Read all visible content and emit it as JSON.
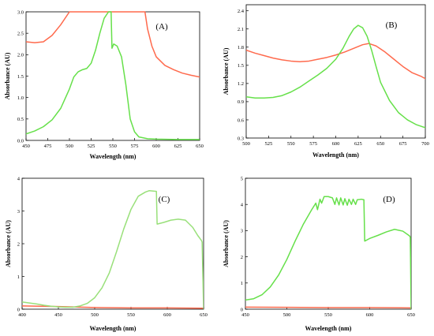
{
  "chart_data": [
    {
      "type": "line",
      "panel": "(A)",
      "xlabel": "Wavelength (nm)",
      "ylabel": "Absorbance (AU)",
      "xlim": [
        450,
        650
      ],
      "ylim": [
        0,
        3.0
      ],
      "xticks": [
        450,
        475,
        500,
        525,
        550,
        575,
        600,
        625,
        650
      ],
      "yticks": [
        0.0,
        0.5,
        1.0,
        1.5,
        2.0,
        2.5,
        3.0
      ],
      "tick_decimals": 1,
      "series": [
        {
          "color": "#ff6a4d",
          "points": [
            [
              450,
              2.3
            ],
            [
              460,
              2.28
            ],
            [
              470,
              2.3
            ],
            [
              480,
              2.45
            ],
            [
              490,
              2.7
            ],
            [
              500,
              3.0
            ],
            [
              510,
              3.0
            ],
            [
              520,
              3.0
            ],
            [
              530,
              3.0
            ],
            [
              540,
              3.0
            ],
            [
              550,
              3.0
            ],
            [
              560,
              3.0
            ],
            [
              570,
              3.0
            ],
            [
              580,
              3.0
            ],
            [
              587,
              3.0
            ],
            [
              590,
              2.6
            ],
            [
              595,
              2.2
            ],
            [
              600,
              1.95
            ],
            [
              610,
              1.75
            ],
            [
              620,
              1.65
            ],
            [
              630,
              1.57
            ],
            [
              640,
              1.52
            ],
            [
              650,
              1.48
            ]
          ]
        },
        {
          "color": "#66e04a",
          "points": [
            [
              450,
              0.15
            ],
            [
              460,
              0.22
            ],
            [
              470,
              0.32
            ],
            [
              480,
              0.48
            ],
            [
              490,
              0.75
            ],
            [
              500,
              1.2
            ],
            [
              505,
              1.48
            ],
            [
              510,
              1.6
            ],
            [
              515,
              1.65
            ],
            [
              520,
              1.68
            ],
            [
              525,
              1.8
            ],
            [
              530,
              2.1
            ],
            [
              535,
              2.5
            ],
            [
              540,
              2.85
            ],
            [
              545,
              3.0
            ],
            [
              548,
              3.0
            ],
            [
              549,
              2.15
            ],
            [
              551,
              2.25
            ],
            [
              555,
              2.2
            ],
            [
              560,
              1.95
            ],
            [
              565,
              1.3
            ],
            [
              570,
              0.5
            ],
            [
              575,
              0.2
            ],
            [
              580,
              0.08
            ],
            [
              590,
              0.04
            ],
            [
              600,
              0.03
            ],
            [
              625,
              0.02
            ],
            [
              650,
              0.02
            ]
          ]
        }
      ]
    },
    {
      "type": "line",
      "panel": "(B)",
      "xlabel": "Wavelength (nm)",
      "ylabel": "Absorbance (AU)",
      "xlim": [
        500,
        700
      ],
      "ylim": [
        0.3,
        2.5
      ],
      "xticks": [
        500,
        525,
        550,
        575,
        600,
        625,
        650,
        675,
        700
      ],
      "yticks": [
        0.3,
        0.6,
        0.9,
        1.2,
        1.5,
        1.8,
        2.1,
        2.4
      ],
      "tick_decimals": 1,
      "series": [
        {
          "color": "#ff6a4d",
          "points": [
            [
              500,
              1.75
            ],
            [
              510,
              1.7
            ],
            [
              520,
              1.66
            ],
            [
              530,
              1.62
            ],
            [
              540,
              1.59
            ],
            [
              550,
              1.57
            ],
            [
              560,
              1.56
            ],
            [
              570,
              1.57
            ],
            [
              580,
              1.6
            ],
            [
              590,
              1.63
            ],
            [
              600,
              1.67
            ],
            [
              610,
              1.72
            ],
            [
              620,
              1.78
            ],
            [
              630,
              1.84
            ],
            [
              637,
              1.86
            ],
            [
              645,
              1.82
            ],
            [
              655,
              1.72
            ],
            [
              665,
              1.6
            ],
            [
              675,
              1.48
            ],
            [
              685,
              1.38
            ],
            [
              695,
              1.32
            ],
            [
              700,
              1.28
            ]
          ]
        },
        {
          "color": "#66e04a",
          "points": [
            [
              500,
              0.98
            ],
            [
              510,
              0.96
            ],
            [
              520,
              0.96
            ],
            [
              530,
              0.97
            ],
            [
              540,
              1.0
            ],
            [
              550,
              1.06
            ],
            [
              560,
              1.14
            ],
            [
              570,
              1.24
            ],
            [
              580,
              1.34
            ],
            [
              590,
              1.45
            ],
            [
              600,
              1.6
            ],
            [
              608,
              1.78
            ],
            [
              615,
              1.98
            ],
            [
              620,
              2.1
            ],
            [
              625,
              2.16
            ],
            [
              630,
              2.12
            ],
            [
              635,
              1.98
            ],
            [
              640,
              1.75
            ],
            [
              645,
              1.48
            ],
            [
              650,
              1.22
            ],
            [
              660,
              0.92
            ],
            [
              670,
              0.72
            ],
            [
              680,
              0.6
            ],
            [
              690,
              0.52
            ],
            [
              700,
              0.47
            ]
          ]
        }
      ]
    },
    {
      "type": "line",
      "panel": "(C)",
      "xlabel": "Wavelength (nm)",
      "ylabel": "Absorbance (AU)",
      "xlim": [
        400,
        650
      ],
      "ylim": [
        0,
        4
      ],
      "xticks": [
        400,
        450,
        500,
        550,
        600,
        650
      ],
      "yticks": [
        0,
        1,
        2,
        3,
        4
      ],
      "tick_decimals": 0,
      "series": [
        {
          "color": "#ff6a4d",
          "points": [
            [
              400,
              0.1
            ],
            [
              450,
              0.08
            ],
            [
              500,
              0.05
            ],
            [
              550,
              0.04
            ],
            [
              600,
              0.04
            ],
            [
              650,
              0.03
            ]
          ]
        },
        {
          "color": "#99e07a",
          "points": [
            [
              400,
              0.22
            ],
            [
              410,
              0.19
            ],
            [
              420,
              0.16
            ],
            [
              430,
              0.12
            ],
            [
              440,
              0.09
            ],
            [
              450,
              0.07
            ],
            [
              460,
              0.06
            ],
            [
              470,
              0.06
            ],
            [
              480,
              0.1
            ],
            [
              490,
              0.18
            ],
            [
              500,
              0.35
            ],
            [
              510,
              0.65
            ],
            [
              520,
              1.1
            ],
            [
              530,
              1.75
            ],
            [
              540,
              2.45
            ],
            [
              550,
              3.05
            ],
            [
              560,
              3.45
            ],
            [
              570,
              3.58
            ],
            [
              575,
              3.62
            ],
            [
              585,
              3.6
            ],
            [
              586,
              2.6
            ],
            [
              595,
              2.65
            ],
            [
              605,
              2.72
            ],
            [
              615,
              2.75
            ],
            [
              625,
              2.72
            ],
            [
              635,
              2.5
            ],
            [
              642,
              2.25
            ],
            [
              647,
              2.1
            ],
            [
              648,
              2.05
            ],
            [
              650,
              0.02
            ]
          ]
        }
      ]
    },
    {
      "type": "line",
      "panel": "(D)",
      "xlabel": "Wavelength (nm)",
      "ylabel": "Absorbance (AU)",
      "xlim": [
        450,
        650
      ],
      "ylim": [
        0,
        5
      ],
      "xticks": [
        450,
        500,
        550,
        600,
        650
      ],
      "yticks": [
        0,
        1,
        2,
        3,
        4,
        5
      ],
      "tick_decimals": 0,
      "series": [
        {
          "color": "#ff6a4d",
          "points": [
            [
              450,
              0.08
            ],
            [
              500,
              0.07
            ],
            [
              550,
              0.06
            ],
            [
              600,
              0.06
            ],
            [
              650,
              0.05
            ]
          ]
        },
        {
          "color": "#66e04a",
          "points": [
            [
              450,
              0.35
            ],
            [
              460,
              0.4
            ],
            [
              470,
              0.55
            ],
            [
              480,
              0.85
            ],
            [
              490,
              1.3
            ],
            [
              500,
              1.9
            ],
            [
              510,
              2.6
            ],
            [
              520,
              3.25
            ],
            [
              530,
              3.8
            ],
            [
              535,
              4.05
            ],
            [
              537,
              3.8
            ],
            [
              540,
              4.2
            ],
            [
              542,
              4.05
            ],
            [
              545,
              4.3
            ],
            [
              550,
              4.3
            ],
            [
              555,
              4.25
            ],
            [
              558,
              4.0
            ],
            [
              560,
              4.25
            ],
            [
              563,
              3.98
            ],
            [
              565,
              4.25
            ],
            [
              568,
              3.98
            ],
            [
              570,
              4.22
            ],
            [
              573,
              3.97
            ],
            [
              575,
              4.2
            ],
            [
              578,
              4.0
            ],
            [
              580,
              4.2
            ],
            [
              583,
              4.0
            ],
            [
              585,
              4.18
            ],
            [
              590,
              4.2
            ],
            [
              593,
              4.18
            ],
            [
              594,
              2.6
            ],
            [
              600,
              2.7
            ],
            [
              610,
              2.82
            ],
            [
              620,
              2.95
            ],
            [
              630,
              3.05
            ],
            [
              640,
              2.98
            ],
            [
              648,
              2.8
            ],
            [
              649,
              2.75
            ],
            [
              650,
              0.02
            ]
          ]
        }
      ]
    }
  ]
}
